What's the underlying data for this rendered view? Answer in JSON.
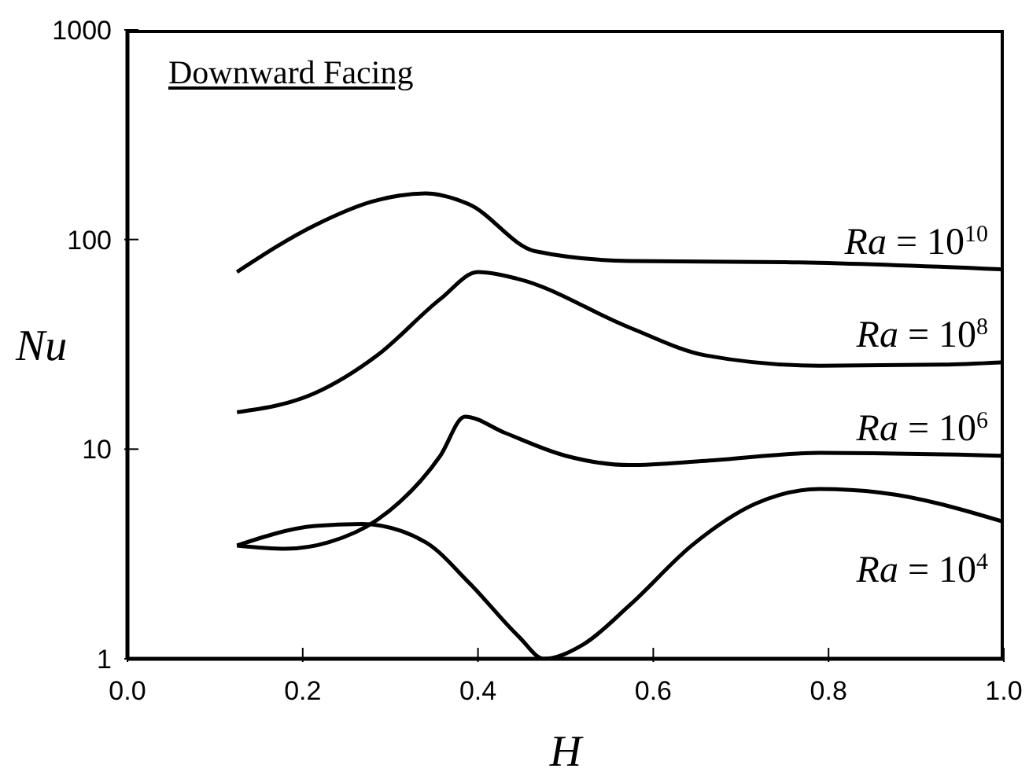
{
  "chart_data": {
    "type": "line",
    "title": "Downward Facing",
    "xlabel": "H",
    "ylabel": "Nu",
    "log": "y",
    "xlim": [
      0,
      1
    ],
    "xticks": [
      {
        "value": 0,
        "label": "0.0"
      },
      0.2,
      0.4,
      0.6,
      0.8,
      {
        "value": 1,
        "label": "1.0"
      }
    ],
    "ylim": [
      1,
      1000
    ],
    "yticks": [
      1,
      10,
      100,
      1000
    ],
    "marker": "none",
    "line_style": "solid",
    "series": [
      {
        "name": "Ra = 10$^{10}$",
        "color": "#000000",
        "x": [
          0.125,
          0.214,
          0.28,
          0.34,
          0.39,
          0.465,
          0.573,
          0.75,
          1.0
        ],
        "values": [
          70,
          117,
          152,
          166,
          147,
          88,
          79,
          78,
          72
        ]
      },
      {
        "name": "Ra = 10$^{8}$",
        "color": "#000000",
        "x": [
          0.125,
          0.214,
          0.285,
          0.357,
          0.4,
          0.445,
          0.573,
          0.66,
          0.79,
          0.93,
          1.0
        ],
        "values": [
          15,
          18.5,
          28,
          52,
          70,
          65,
          38,
          28,
          25,
          25.3,
          26
        ]
      },
      {
        "name": "Ra = 10$^{6}$",
        "color": "#000000",
        "x": [
          0.125,
          0.18,
          0.23,
          0.285,
          0.357,
          0.385,
          0.43,
          0.5,
          0.573,
          0.66,
          0.79,
          1.0
        ],
        "values": [
          3.47,
          3.35,
          3.6,
          4.6,
          9.3,
          14.3,
          12,
          9.3,
          8.4,
          8.8,
          9.6,
          9.3
        ]
      },
      {
        "name": "Ra = 10$^{4}$",
        "color": "#000000",
        "x": [
          0.125,
          0.214,
          0.267,
          0.34,
          0.39,
          0.447,
          0.475,
          0.52,
          0.573,
          0.645,
          0.717,
          0.79,
          0.86,
          1.0
        ],
        "values": [
          3.47,
          4.3,
          4.4,
          3.6,
          2.3,
          1.27,
          1.0,
          1.17,
          1.8,
          3.5,
          5.5,
          6.45,
          6.2,
          4.5
        ]
      }
    ]
  }
}
